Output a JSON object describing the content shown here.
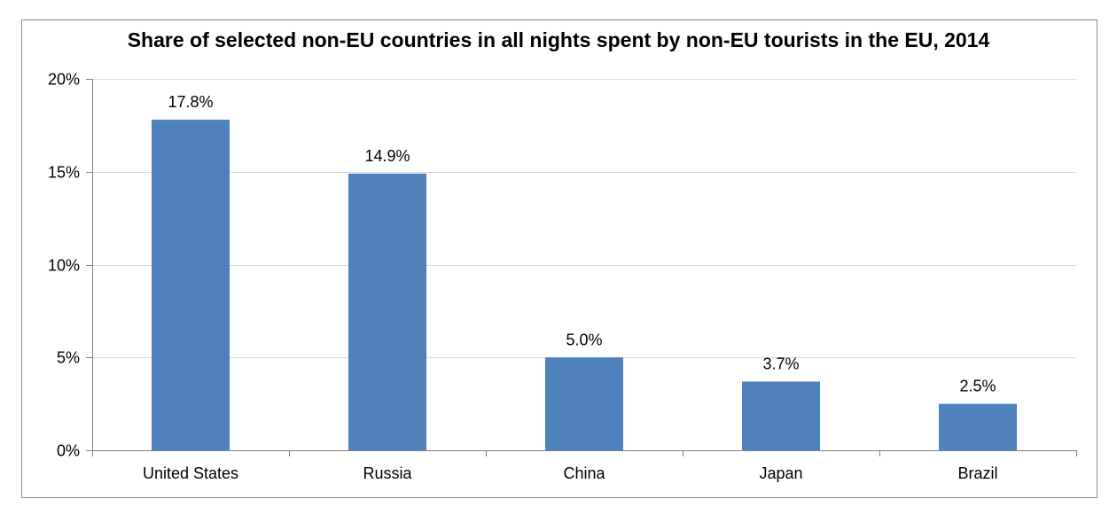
{
  "chart_data": {
    "type": "bar",
    "title": "Share of selected non-EU countries in all nights spent by non-EU tourists in the EU, 2014",
    "categories": [
      "United States",
      "Russia",
      "China",
      "Japan",
      "Brazil"
    ],
    "values": [
      17.8,
      14.9,
      5.0,
      3.7,
      2.5
    ],
    "data_labels": [
      "17.8%",
      "14.9%",
      "5.0%",
      "3.7%",
      "2.5%"
    ],
    "y_ticks": [
      0,
      5,
      10,
      15,
      20
    ],
    "y_tick_labels": [
      "0%",
      "5%",
      "10%",
      "15%",
      "20%"
    ],
    "ylim": [
      0,
      20
    ],
    "xlabel": "",
    "ylabel": "",
    "grid": true,
    "legend": "none",
    "bar_color": "#4f81bd",
    "grid_color": "#d9d9d9"
  }
}
